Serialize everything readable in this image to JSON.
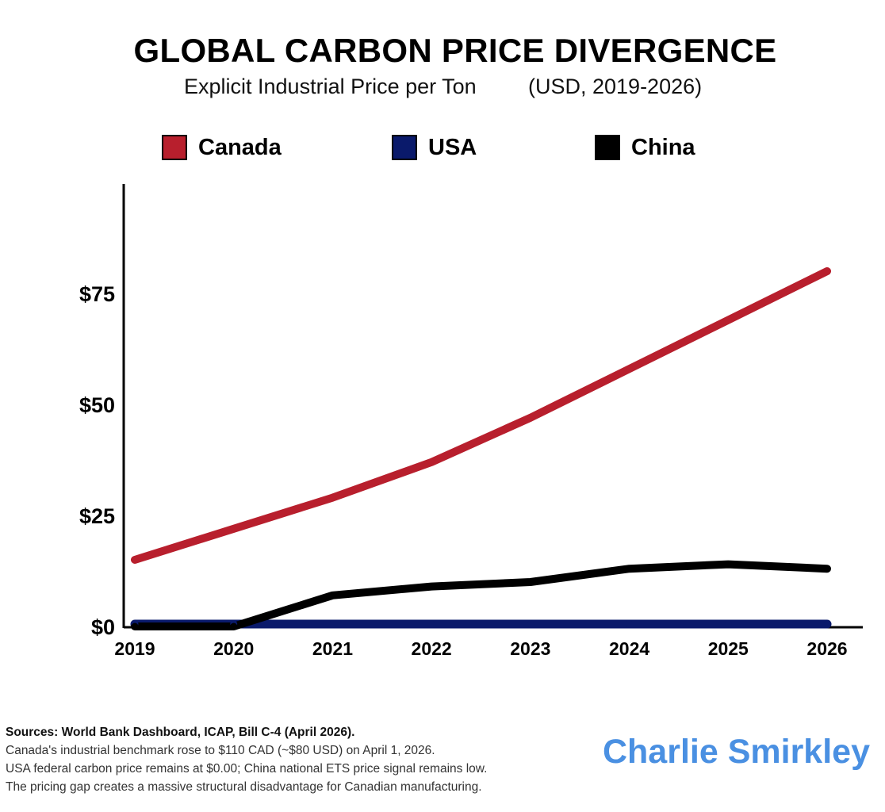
{
  "chart_data": {
    "type": "line",
    "title": "GLOBAL CARBON PRICE DIVERGENCE",
    "subtitle_left": "Explicit Industrial Price per Ton",
    "subtitle_right": "(USD, 2019-2026)",
    "categories": [
      "2019",
      "2020",
      "2021",
      "2022",
      "2023",
      "2024",
      "2025",
      "2026"
    ],
    "ylim": [
      0,
      100
    ],
    "yticks": [
      {
        "value": 0,
        "label": "$0"
      },
      {
        "value": 25,
        "label": "$25"
      },
      {
        "value": 50,
        "label": "$50"
      },
      {
        "value": 75,
        "label": "$75"
      }
    ],
    "legend_position": "top",
    "grid": false,
    "series": [
      {
        "name": "Canada",
        "color": "#b81f2d",
        "values": [
          15,
          22,
          29,
          37,
          47,
          58,
          69,
          80
        ]
      },
      {
        "name": "USA",
        "color": "#0a1a6b",
        "values": [
          0,
          0,
          0,
          0,
          0,
          0,
          0,
          0
        ]
      },
      {
        "name": "China",
        "color": "#000000",
        "values": [
          0,
          0,
          7,
          9,
          10,
          13,
          14,
          13
        ]
      }
    ]
  },
  "footer": {
    "sources": "Sources: World Bank Dashboard, ICAP, Bill C-4 (April 2026).",
    "lines": [
      "Canada's industrial benchmark rose to $110 CAD (~$80 USD) on April 1, 2026.",
      "USA federal carbon price remains at $0.00; China national ETS price signal remains low.",
      "The pricing gap creates a massive structural disadvantage for Canadian manufacturing."
    ]
  },
  "brand": "Charlie Smirkley"
}
